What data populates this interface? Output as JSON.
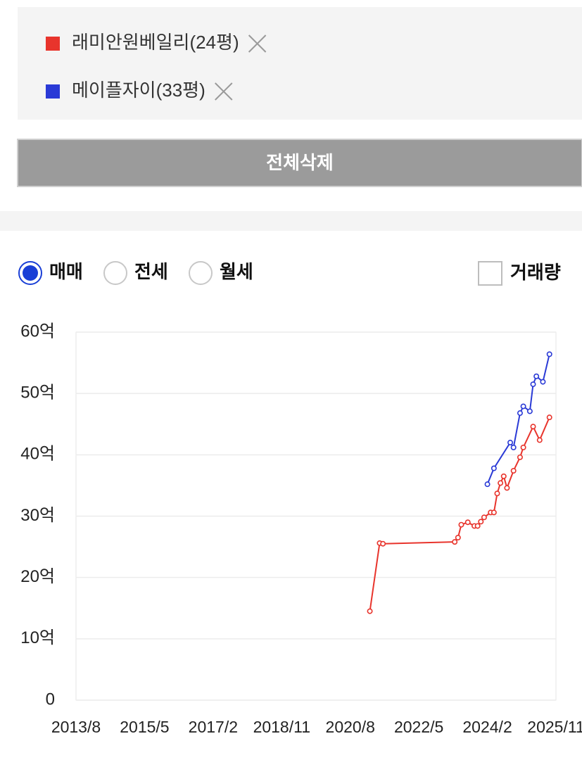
{
  "selection_panel": {
    "delete_all": "전체삭제"
  },
  "filters": {
    "options": [
      "매매",
      "전세",
      "월세"
    ],
    "selected": 0,
    "volume_toggle": "거래량",
    "volume_checked": false
  },
  "chart_data": {
    "type": "line",
    "xlim": [
      "2013/8",
      "2025/11"
    ],
    "xticks": [
      "2013/8",
      "2015/5",
      "2017/2",
      "2018/11",
      "2020/8",
      "2022/5",
      "2024/2",
      "2025/11"
    ],
    "ylim": [
      0,
      60
    ],
    "yticks": [
      0,
      {
        "value": 10,
        "label": "10억"
      },
      {
        "value": 20,
        "label": "20억"
      },
      {
        "value": 30,
        "label": "30억"
      },
      {
        "value": 40,
        "label": "40억"
      },
      {
        "value": 50,
        "label": "50억"
      },
      {
        "value": 60,
        "label": "60억"
      }
    ],
    "grid": true,
    "series": [
      {
        "name": "래미안원베일리(24평)",
        "color": "#e8342c",
        "x": [
          "2021/2",
          "2021/5",
          "2021/6",
          "2023/4",
          "2023/5",
          "2023/6",
          "2023/8",
          "2023/10",
          "2023/11",
          "2023/12",
          "2024/1",
          "2024/3",
          "2024/4",
          "2024/5",
          "2024/6",
          "2024/7",
          "2024/8",
          "2024/10",
          "2024/12",
          "2025/1",
          "2025/4",
          "2025/6",
          "2025/9"
        ],
        "values": [
          14.5,
          25.6,
          25.5,
          25.8,
          26.5,
          28.6,
          29.0,
          28.4,
          28.4,
          29.1,
          29.8,
          30.6,
          30.6,
          33.7,
          35.4,
          36.5,
          34.6,
          37.4,
          39.6,
          41.2,
          44.6,
          42.4,
          46.1
        ]
      },
      {
        "name": "메이플자이(33평)",
        "color": "#2a3ad6",
        "x": [
          "2024/2",
          "2024/4",
          "2024/9",
          "2024/10",
          "2024/12",
          "2025/1",
          "2025/3",
          "2025/4",
          "2025/5",
          "2025/7",
          "2025/9"
        ],
        "values": [
          35.2,
          37.8,
          42.0,
          41.2,
          46.8,
          47.9,
          47.1,
          51.5,
          52.8,
          51.9,
          56.4
        ]
      }
    ]
  }
}
